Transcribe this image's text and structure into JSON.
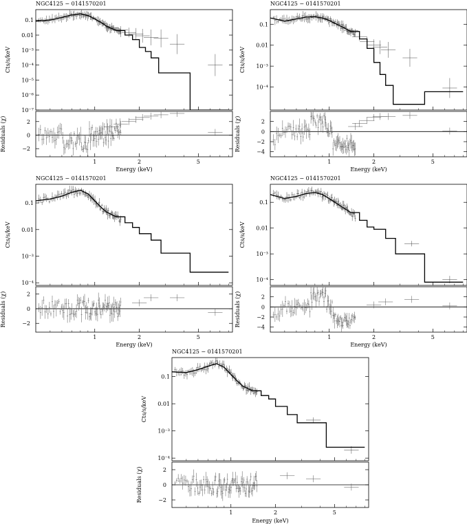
{
  "chart_data": [
    {
      "type": "scatter",
      "panel": "top-left",
      "title": "NGC4125 − 0141570201",
      "upper": {
        "ylabel": "Cts/s/keV",
        "yscale": "log",
        "ylim": [
          1e-07,
          0.5
        ],
        "yticks": [
          {
            "v": 0.1,
            "t": "0.1"
          },
          {
            "v": 0.01,
            "t": "0.01"
          },
          {
            "v": 0.001,
            "t": "10⁻³"
          },
          {
            "v": 0.0001,
            "t": "10⁻⁴"
          },
          {
            "v": 1e-05,
            "t": "10⁻⁵"
          },
          {
            "v": 1e-06,
            "t": "10⁻⁶"
          },
          {
            "v": 1e-07,
            "t": "10⁻⁷"
          }
        ],
        "model": [
          [
            0.4,
            0.085
          ],
          [
            0.5,
            0.1
          ],
          [
            0.6,
            0.15
          ],
          [
            0.7,
            0.22
          ],
          [
            0.8,
            0.26
          ],
          [
            0.9,
            0.2
          ],
          [
            1.0,
            0.12
          ],
          [
            1.1,
            0.07
          ],
          [
            1.2,
            0.04
          ],
          [
            1.4,
            0.02
          ],
          [
            1.6,
            0.01
          ],
          [
            1.8,
            0.005
          ],
          [
            2.0,
            0.0015
          ],
          [
            2.2,
            0.0008
          ],
          [
            2.4,
            0.0003
          ],
          [
            2.7,
            3e-05
          ],
          [
            4.4,
            1e-07
          ],
          [
            8.0,
            1e-07
          ]
        ],
        "data_high": [
          [
            1.3,
            0.03
          ],
          [
            1.5,
            0.022
          ],
          [
            1.7,
            0.015
          ],
          [
            1.9,
            0.012
          ],
          [
            2.1,
            0.009
          ],
          [
            2.4,
            0.007
          ],
          [
            2.8,
            0.006
          ],
          [
            3.6,
            0.0025
          ],
          [
            6.5,
            0.0001
          ]
        ]
      },
      "lower": {
        "ylabel": "Residuals (χ)",
        "ylim": [
          -3.2,
          3.5
        ],
        "yticks": [
          {
            "v": 2,
            "t": "2"
          },
          {
            "v": 0,
            "t": "0"
          },
          {
            "v": -2,
            "t": "−2"
          }
        ],
        "high": [
          [
            1.3,
            1.2
          ],
          [
            1.5,
            1.6
          ],
          [
            1.7,
            2.0
          ],
          [
            1.9,
            2.3
          ],
          [
            2.1,
            2.6
          ],
          [
            2.4,
            2.8
          ],
          [
            2.8,
            3.0
          ],
          [
            3.6,
            3.2
          ],
          [
            6.5,
            0.4
          ]
        ]
      },
      "xlabel": "Energy (keV)",
      "xlim": [
        0.4,
        8.5
      ],
      "xticks": [
        {
          "v": 1,
          "t": "1"
        },
        {
          "v": 2,
          "t": "2"
        },
        {
          "v": 5,
          "t": "5"
        }
      ]
    },
    {
      "type": "scatter",
      "panel": "top-right",
      "title": "NGC4125 − 0141570201",
      "upper": {
        "ylabel": "Cts/s/keV",
        "yscale": "log",
        "ylim": [
          8e-06,
          0.5
        ],
        "yticks": [
          {
            "v": 0.1,
            "t": "0.1"
          },
          {
            "v": 0.01,
            "t": "0.01"
          },
          {
            "v": 0.001,
            "t": "10⁻³"
          },
          {
            "v": 0.0001,
            "t": "10⁻⁴"
          }
        ],
        "model": [
          [
            0.4,
            0.2
          ],
          [
            0.5,
            0.14
          ],
          [
            0.6,
            0.18
          ],
          [
            0.7,
            0.22
          ],
          [
            0.8,
            0.23
          ],
          [
            0.9,
            0.2
          ],
          [
            1.0,
            0.15
          ],
          [
            1.2,
            0.08
          ],
          [
            1.4,
            0.045
          ],
          [
            1.6,
            0.02
          ],
          [
            1.8,
            0.007
          ],
          [
            2.0,
            0.0015
          ],
          [
            2.2,
            0.0004
          ],
          [
            2.4,
            0.00012
          ],
          [
            2.7,
            1.5e-05
          ],
          [
            4.4,
            6e-05
          ],
          [
            8.0,
            6e-05
          ]
        ],
        "data_high": [
          [
            1.4,
            0.05
          ],
          [
            1.6,
            0.025
          ],
          [
            1.8,
            0.015
          ],
          [
            2.0,
            0.01
          ],
          [
            2.2,
            0.008
          ],
          [
            2.5,
            0.006
          ],
          [
            3.5,
            0.0025
          ],
          [
            6.5,
            9e-05
          ]
        ]
      },
      "lower": {
        "ylabel": "Residuals (χ)",
        "ylim": [
          -5,
          4
        ],
        "yticks": [
          {
            "v": 2,
            "t": "2"
          },
          {
            "v": 0,
            "t": "0"
          },
          {
            "v": -2,
            "t": "−2"
          },
          {
            "v": -4,
            "t": "−4"
          }
        ],
        "high": [
          [
            1.5,
            1.0
          ],
          [
            1.6,
            1.6
          ],
          [
            1.8,
            2.2
          ],
          [
            2.0,
            2.8
          ],
          [
            2.2,
            3.0
          ],
          [
            2.5,
            3.0
          ],
          [
            3.5,
            3.2
          ],
          [
            6.5,
            0.1
          ]
        ]
      },
      "xlabel": "Energy (keV)",
      "xlim": [
        0.4,
        8.5
      ],
      "xticks": [
        {
          "v": 1,
          "t": "1"
        },
        {
          "v": 2,
          "t": "2"
        },
        {
          "v": 5,
          "t": "5"
        }
      ]
    },
    {
      "type": "scatter",
      "panel": "middle-left",
      "title": "NGC4125 − 0141570201",
      "upper": {
        "ylabel": "Cts/s/keV",
        "yscale": "log",
        "ylim": [
          8e-05,
          0.5
        ],
        "yticks": [
          {
            "v": 0.1,
            "t": "0.1"
          },
          {
            "v": 0.01,
            "t": "0.01"
          },
          {
            "v": 0.001,
            "t": "10⁻³"
          },
          {
            "v": 0.0001,
            "t": "10⁻⁴"
          }
        ],
        "model": [
          [
            0.4,
            0.12
          ],
          [
            0.5,
            0.14
          ],
          [
            0.6,
            0.18
          ],
          [
            0.7,
            0.25
          ],
          [
            0.8,
            0.3
          ],
          [
            0.9,
            0.22
          ],
          [
            1.0,
            0.12
          ],
          [
            1.1,
            0.07
          ],
          [
            1.2,
            0.045
          ],
          [
            1.4,
            0.03
          ],
          [
            1.6,
            0.018
          ],
          [
            1.8,
            0.012
          ],
          [
            2.0,
            0.007
          ],
          [
            2.4,
            0.004
          ],
          [
            2.8,
            0.0013
          ],
          [
            4.4,
            0.00025
          ],
          [
            8.0,
            0.00025
          ]
        ],
        "data_high": []
      },
      "lower": {
        "ylabel": "Residuals (χ)",
        "ylim": [
          -3.2,
          3
        ],
        "yticks": [
          {
            "v": 2,
            "t": "2"
          },
          {
            "v": 0,
            "t": "0"
          },
          {
            "v": -2,
            "t": "−2"
          }
        ],
        "high": [
          [
            2.0,
            0.8
          ],
          [
            2.4,
            1.5
          ],
          [
            3.6,
            1.5
          ],
          [
            6.5,
            -0.5
          ]
        ]
      },
      "xlabel": "Energy (keV)",
      "xlim": [
        0.4,
        8.5
      ],
      "xticks": [
        {
          "v": 1,
          "t": "1"
        },
        {
          "v": 2,
          "t": "2"
        },
        {
          "v": 5,
          "t": "5"
        }
      ]
    },
    {
      "type": "scatter",
      "panel": "middle-right",
      "title": "NGC4125 − 0141570201",
      "upper": {
        "ylabel": "Cts/s/keV",
        "yscale": "log",
        "ylim": [
          6e-05,
          0.5
        ],
        "yticks": [
          {
            "v": 0.1,
            "t": "0.1"
          },
          {
            "v": 0.01,
            "t": "0.01"
          },
          {
            "v": 0.001,
            "t": "10⁻³"
          },
          {
            "v": 0.0001,
            "t": "10⁻⁴"
          }
        ],
        "model": [
          [
            0.4,
            0.2
          ],
          [
            0.5,
            0.14
          ],
          [
            0.6,
            0.17
          ],
          [
            0.7,
            0.22
          ],
          [
            0.8,
            0.24
          ],
          [
            0.9,
            0.2
          ],
          [
            1.0,
            0.14
          ],
          [
            1.2,
            0.07
          ],
          [
            1.4,
            0.04
          ],
          [
            1.6,
            0.02
          ],
          [
            1.8,
            0.011
          ],
          [
            2.0,
            0.009
          ],
          [
            2.4,
            0.004
          ],
          [
            2.8,
            0.001
          ],
          [
            4.4,
            8e-05
          ],
          [
            8.0,
            8e-05
          ]
        ],
        "data_high": [
          [
            3.6,
            0.0025
          ],
          [
            6.5,
            0.0001
          ]
        ]
      },
      "lower": {
        "ylabel": "Residuals (χ)",
        "ylim": [
          -5,
          4
        ],
        "yticks": [
          {
            "v": 2,
            "t": "2"
          },
          {
            "v": 0,
            "t": "0"
          },
          {
            "v": -2,
            "t": "−2"
          },
          {
            "v": -4,
            "t": "−4"
          }
        ],
        "high": [
          [
            2.0,
            0.4
          ],
          [
            2.4,
            1.0
          ],
          [
            3.6,
            1.5
          ],
          [
            6.5,
            0.2
          ]
        ]
      },
      "xlabel": "Energy (keV)",
      "xlim": [
        0.4,
        8.5
      ],
      "xticks": [
        {
          "v": 1,
          "t": "1"
        },
        {
          "v": 2,
          "t": "2"
        },
        {
          "v": 5,
          "t": "5"
        }
      ]
    },
    {
      "type": "scatter",
      "panel": "bottom-center",
      "title": "NGC4125 − 0141570201",
      "upper": {
        "ylabel": "Cts/s/keV",
        "yscale": "log",
        "ylim": [
          8e-05,
          0.5
        ],
        "yticks": [
          {
            "v": 0.1,
            "t": "0.1"
          },
          {
            "v": 0.01,
            "t": "0.01"
          },
          {
            "v": 0.001,
            "t": "10⁻³"
          },
          {
            "v": 0.0001,
            "t": "10⁻⁴"
          }
        ],
        "model": [
          [
            0.4,
            0.15
          ],
          [
            0.5,
            0.14
          ],
          [
            0.6,
            0.18
          ],
          [
            0.7,
            0.24
          ],
          [
            0.8,
            0.3
          ],
          [
            0.9,
            0.22
          ],
          [
            1.0,
            0.12
          ],
          [
            1.1,
            0.07
          ],
          [
            1.2,
            0.045
          ],
          [
            1.4,
            0.03
          ],
          [
            1.6,
            0.02
          ],
          [
            1.8,
            0.015
          ],
          [
            2.0,
            0.008
          ],
          [
            2.4,
            0.004
          ],
          [
            2.8,
            0.002
          ],
          [
            4.4,
            0.00025
          ],
          [
            8.0,
            0.00025
          ]
        ],
        "data_high": [
          [
            3.6,
            0.0025
          ],
          [
            6.5,
            0.0002
          ]
        ]
      },
      "lower": {
        "ylabel": "Residuals (χ)",
        "ylim": [
          -3,
          3
        ],
        "yticks": [
          {
            "v": 2,
            "t": "2"
          },
          {
            "v": 0,
            "t": "0"
          },
          {
            "v": -2,
            "t": "−2"
          }
        ],
        "high": [
          [
            2.4,
            1.2
          ],
          [
            3.6,
            0.8
          ],
          [
            6.5,
            -0.3
          ]
        ]
      },
      "xlabel": "Energy (keV)",
      "xlim": [
        0.4,
        8.5
      ],
      "xticks": [
        {
          "v": 1,
          "t": "1"
        },
        {
          "v": 2,
          "t": "2"
        },
        {
          "v": 5,
          "t": "5"
        }
      ]
    }
  ]
}
